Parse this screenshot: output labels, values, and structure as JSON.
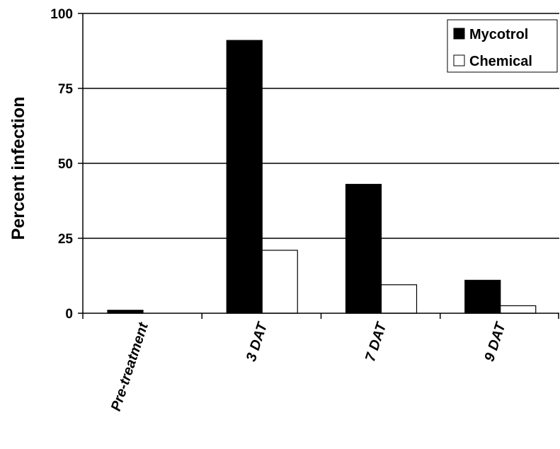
{
  "chart_data": {
    "type": "bar",
    "title": "",
    "xlabel": "",
    "ylabel": "Percent infection",
    "ylim": [
      0,
      100
    ],
    "yticks": [
      "0",
      "25",
      "50",
      "75",
      "100"
    ],
    "grid": "horizontal",
    "legend_position": "top-right",
    "categories": [
      "Pre-treatment",
      "3 DAT",
      "7 DAT",
      "9 DAT"
    ],
    "series": [
      {
        "name": "Mycotrol",
        "values": [
          1,
          91,
          43,
          11
        ],
        "color": "#000000"
      },
      {
        "name": "Chemical",
        "values": [
          0,
          21,
          9.5,
          2.5
        ],
        "color": "#ffffff"
      }
    ]
  }
}
